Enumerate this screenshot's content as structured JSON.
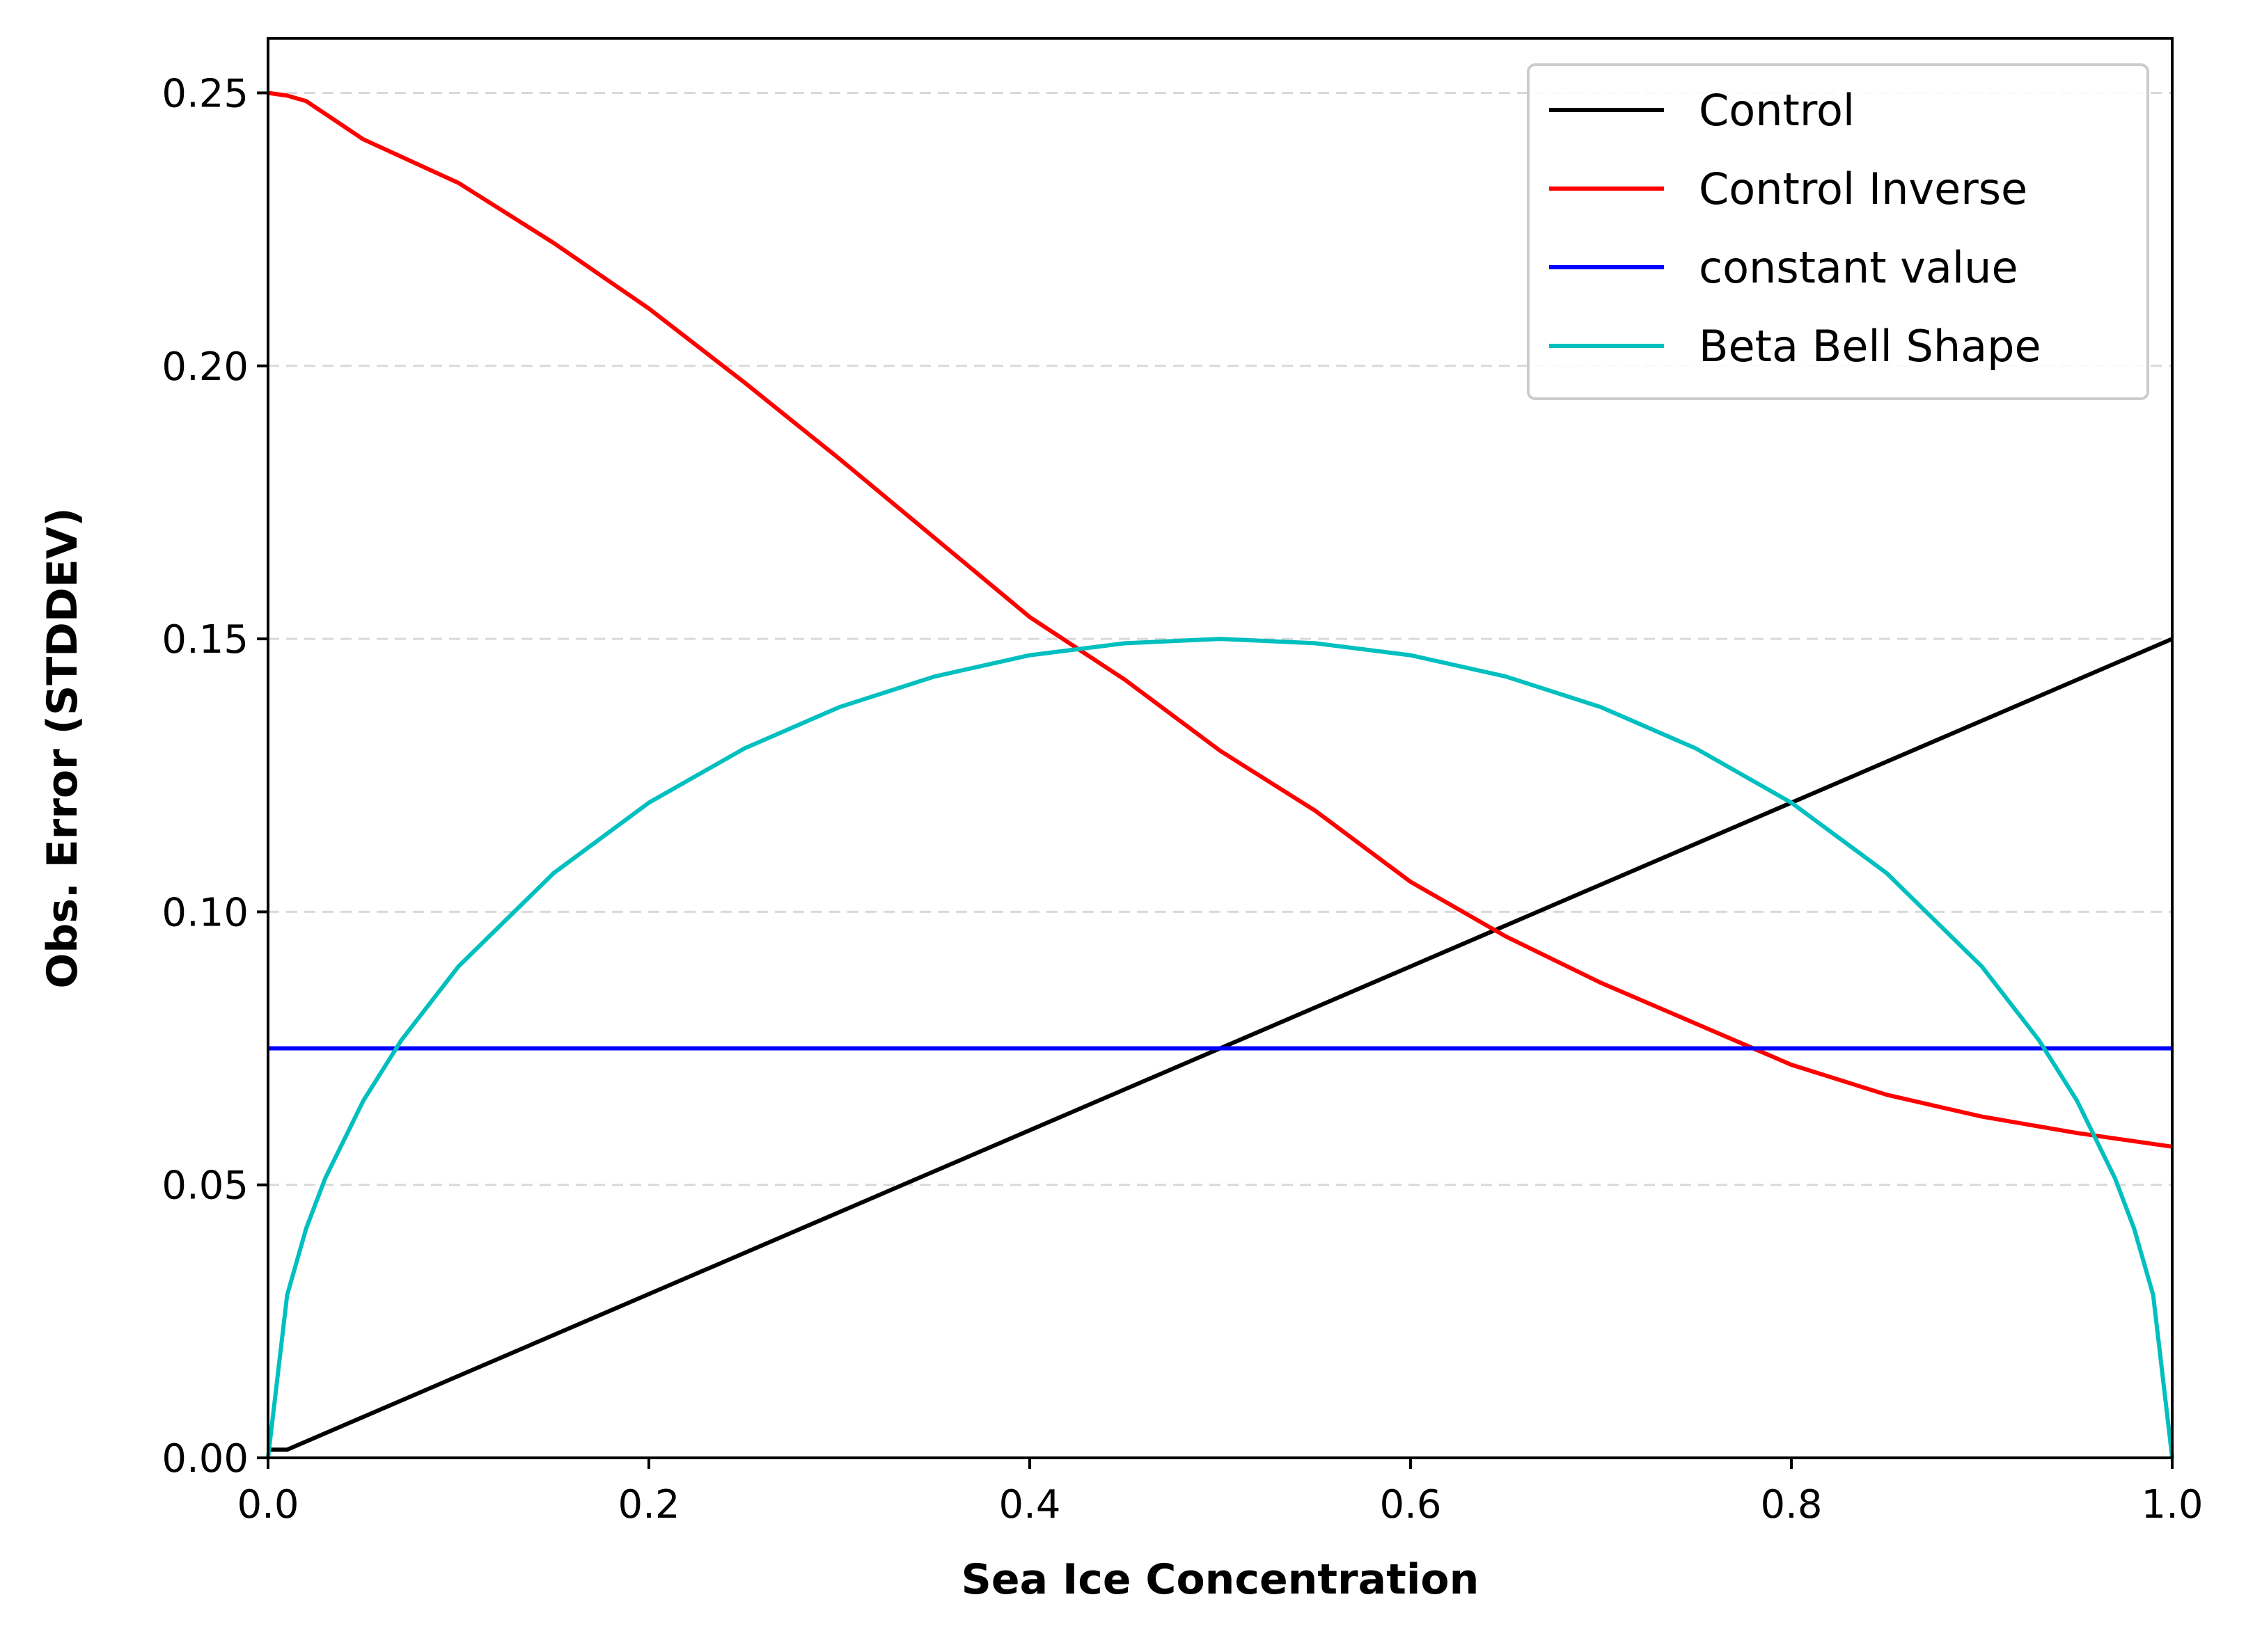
{
  "chart_data": {
    "type": "line",
    "title": "",
    "xlabel": "Sea Ice Concentration",
    "ylabel": "Obs. Error (STDDEV)",
    "xlim": [
      0.0,
      1.0
    ],
    "ylim": [
      0.0,
      0.26
    ],
    "x_ticks": [
      0.0,
      0.2,
      0.4,
      0.6,
      0.8,
      1.0
    ],
    "x_tick_labels": [
      "0.0",
      "0.2",
      "0.4",
      "0.6",
      "0.8",
      "1.0"
    ],
    "y_ticks": [
      0.0,
      0.05,
      0.1,
      0.15,
      0.2,
      0.25
    ],
    "y_tick_labels": [
      "0.00",
      "0.05",
      "0.10",
      "0.15",
      "0.20",
      "0.25"
    ],
    "grid": "y-dashed",
    "legend_position": "top-right",
    "series": [
      {
        "name": "Control",
        "color": "#000000",
        "x": [
          0.0,
          0.01,
          1.0
        ],
        "y": [
          0.0015,
          0.0015,
          0.15
        ]
      },
      {
        "name": "Control Inverse",
        "color": "#ff0000",
        "x": [
          0.0,
          0.01,
          0.02,
          0.05,
          0.1,
          0.15,
          0.2,
          0.25,
          0.3,
          0.35,
          0.4,
          0.45,
          0.5,
          0.55,
          0.6,
          0.65,
          0.7,
          0.75,
          0.8,
          0.85,
          0.9,
          0.95,
          1.0
        ],
        "y": [
          0.25,
          0.2495,
          0.2485,
          0.2415,
          0.2335,
          0.2225,
          0.2105,
          0.197,
          0.183,
          0.1685,
          0.154,
          0.1425,
          0.1295,
          0.1185,
          0.1055,
          0.0955,
          0.087,
          0.0795,
          0.072,
          0.0665,
          0.0625,
          0.0595,
          0.057
        ]
      },
      {
        "name": "constant value",
        "color": "#0000ff",
        "x": [
          0.0,
          1.0
        ],
        "y": [
          0.075,
          0.075
        ]
      },
      {
        "name": "Beta Bell Shape",
        "color": "#00bfbf",
        "x": [
          0.0,
          0.01,
          0.02,
          0.03,
          0.05,
          0.07,
          0.1,
          0.15,
          0.2,
          0.25,
          0.3,
          0.35,
          0.4,
          0.45,
          0.5,
          0.55,
          0.6,
          0.65,
          0.7,
          0.75,
          0.8,
          0.85,
          0.9,
          0.93,
          0.95,
          0.97,
          0.98,
          0.99,
          1.0
        ],
        "y": [
          0.0,
          0.0298,
          0.042,
          0.0512,
          0.0654,
          0.0765,
          0.09,
          0.1071,
          0.12,
          0.1299,
          0.1375,
          0.1431,
          0.147,
          0.1492,
          0.15,
          0.1492,
          0.147,
          0.1431,
          0.1375,
          0.1299,
          0.12,
          0.1071,
          0.09,
          0.0765,
          0.0654,
          0.0512,
          0.042,
          0.0298,
          0.0
        ]
      }
    ]
  }
}
